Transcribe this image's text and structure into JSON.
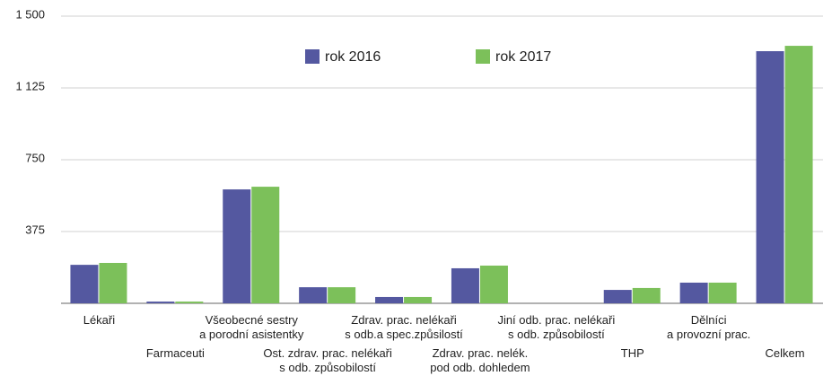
{
  "chart_data": {
    "type": "bar",
    "categories": [
      "Lékaři",
      "Farmaceuti",
      "Všeobecné sestry\na porodní asistentky",
      "Ost. zdrav. prac. nelékaři\ns odb. způsobilostí",
      "Zdrav. prac. nelékaři\ns odb.a spec.způsilostí",
      "Zdrav. prac. nelék.\npod odb. dohledem",
      "Jiní odb. prac. nelékaři\ns odb. způsobilostí",
      "THP",
      "Dělníci\na provozní prac.",
      "Celkem"
    ],
    "series": [
      {
        "name": "rok 2016",
        "color": "#5458a0",
        "values": [
          201,
          9,
          595,
          84,
          33,
          183,
          0,
          70,
          108,
          1317
        ]
      },
      {
        "name": "rok 2017",
        "color": "#7cc05a",
        "values": [
          211,
          9,
          609,
          84,
          33,
          197,
          0,
          80,
          108,
          1345
        ]
      }
    ],
    "ylim": [
      0,
      1500
    ],
    "yticks": [
      375,
      750,
      {
        "value": 1125,
        "label": "1 125"
      },
      {
        "value": 1500,
        "label": "1 500"
      }
    ],
    "grid": true
  }
}
